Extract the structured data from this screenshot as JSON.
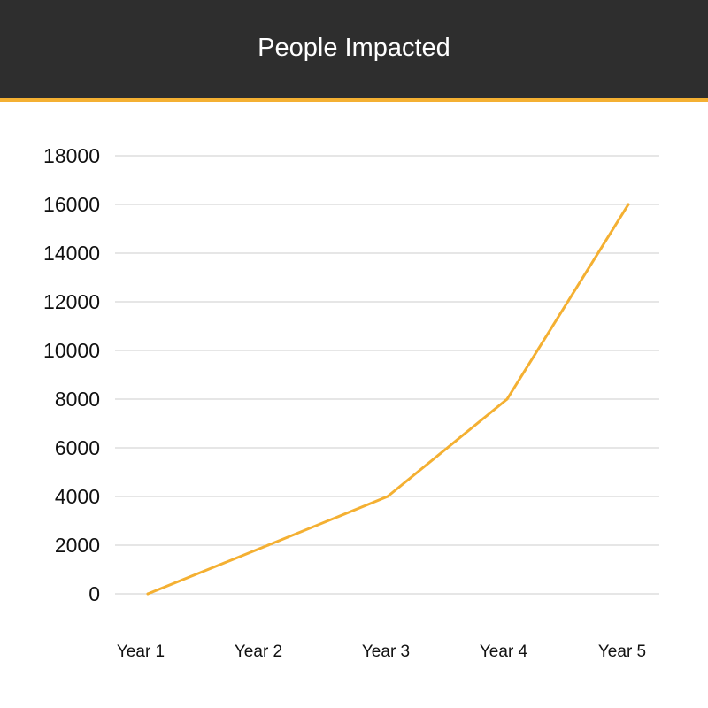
{
  "header": {
    "title": "People Impacted"
  },
  "colors": {
    "header_bg": "#2e2e2e",
    "accent": "#f4b032",
    "gridline": "#cccccc"
  },
  "chart_data": {
    "type": "line",
    "title": "People Impacted",
    "categories": [
      "Year 1",
      "Year 2",
      "Year 3",
      "Year 4",
      "Year 5"
    ],
    "series": [
      {
        "values": [
          0,
          2000,
          4000,
          8000,
          16000
        ]
      }
    ],
    "ylim": [
      0,
      18000
    ],
    "yticks": [
      0,
      2000,
      4000,
      6000,
      8000,
      10000,
      12000,
      14000,
      16000,
      18000
    ],
    "grid": true,
    "legend": "none"
  }
}
